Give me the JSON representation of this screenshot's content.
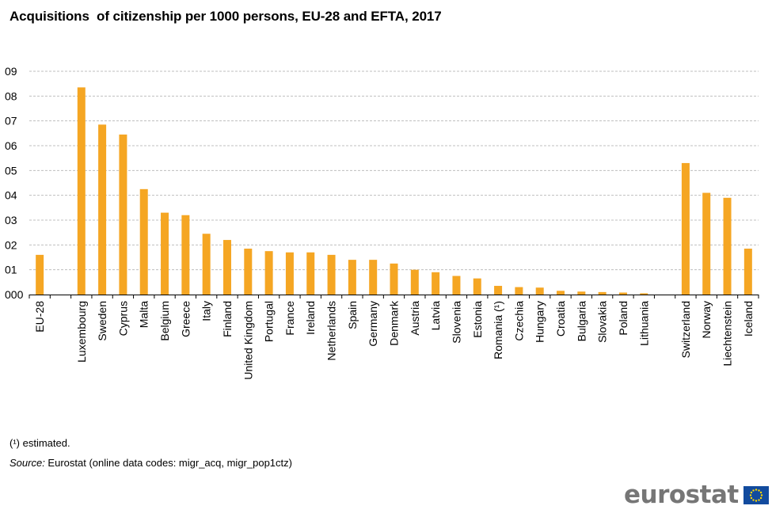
{
  "title": "Acquisitions  of citizenship per 1000 persons, EU-28 and EFTA, 2017",
  "footnote": "(¹) estimated.",
  "source_label": "Source:",
  "source_text": " Eurostat (online data codes: migr_acq, migr_pop1ctz)",
  "logo_text": "eurostat",
  "colors": {
    "bar": "#F5A623",
    "grid": "#BFBFBF",
    "axis": "#000000",
    "flag_blue": "#124B9E",
    "flag_star": "#FFD800"
  },
  "chart_data": {
    "type": "bar",
    "title": "Acquisitions  of citizenship per 1000 persons, EU-28 and EFTA, 2017",
    "xlabel": "",
    "ylabel": "",
    "ylim": [
      0,
      9
    ],
    "ytick_labels": [
      "000",
      "01",
      "02",
      "03",
      "04",
      "05",
      "06",
      "07",
      "08",
      "09"
    ],
    "grid": true,
    "legend": "none",
    "categories": [
      "EU-28",
      "",
      "Luxembourg",
      "Sweden",
      "Cyprus",
      "Malta",
      "Belgium",
      "Greece",
      "Italy",
      "Finland",
      "United Kingdom",
      "Portugal",
      "France",
      "Ireland",
      "Netherlands",
      "Spain",
      "Germany",
      "Denmark",
      "Austria",
      "Latvia",
      "Slovenia",
      "Estonia",
      "Romania (¹)",
      "Czechia",
      "Hungary",
      "Croatia",
      "Bulgaria",
      "Slovakia",
      "Poland",
      "Lithuania",
      "",
      "Switzerland",
      "Norway",
      "Liechtenstein",
      "Iceland"
    ],
    "values": [
      1.6,
      null,
      8.35,
      6.85,
      6.45,
      4.25,
      3.3,
      3.2,
      2.45,
      2.2,
      1.85,
      1.75,
      1.7,
      1.7,
      1.6,
      1.4,
      1.4,
      1.25,
      1.0,
      0.9,
      0.75,
      0.65,
      0.35,
      0.3,
      0.28,
      0.15,
      0.12,
      0.1,
      0.08,
      0.05,
      null,
      5.3,
      4.1,
      3.9,
      1.85
    ]
  }
}
